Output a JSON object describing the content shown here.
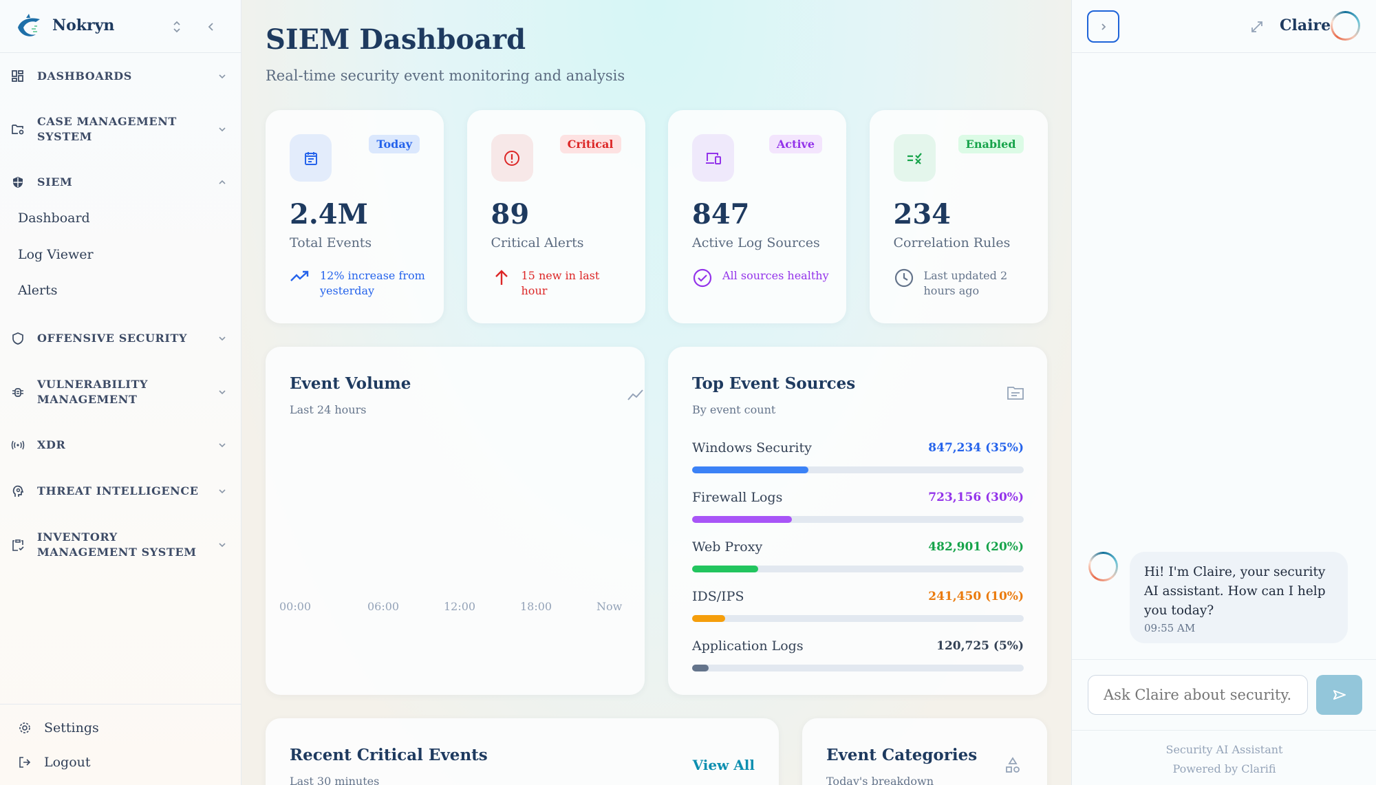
{
  "sidebar": {
    "brand": "Nokryn",
    "nav": [
      {
        "label": "DASHBOARDS",
        "icon": "grid-icon",
        "expanded": false
      },
      {
        "label": "CASE MANAGEMENT SYSTEM",
        "icon": "folder-gear-icon",
        "expanded": false
      },
      {
        "label": "SIEM",
        "icon": "shield-half-icon",
        "expanded": true
      },
      {
        "label": "OFFENSIVE SECURITY",
        "icon": "shield-icon",
        "expanded": false
      },
      {
        "label": "VULNERABILITY MANAGEMENT",
        "icon": "bug-icon",
        "expanded": false
      },
      {
        "label": "XDR",
        "icon": "broadcast-icon",
        "expanded": false
      },
      {
        "label": "THREAT INTELLIGENCE",
        "icon": "head-gear-icon",
        "expanded": false
      },
      {
        "label": "INVENTORY MANAGEMENT SYSTEM",
        "icon": "clipboard-check-icon",
        "expanded": false
      }
    ],
    "siem_items": [
      "Dashboard",
      "Log Viewer",
      "Alerts"
    ],
    "settings": "Settings",
    "logout": "Logout"
  },
  "header": {
    "title": "SIEM Dashboard",
    "subtitle": "Real-time security event monitoring and analysis"
  },
  "stats": [
    {
      "value": "2.4M",
      "label": "Total Events",
      "badge": "Today",
      "footer": "12% increase from yesterday",
      "color": "#2563eb",
      "bg": "#e3ecfb",
      "badge_bg": "#dbe8fd",
      "icon": "calendar-icon",
      "footer_icon": "trend-up-icon"
    },
    {
      "value": "89",
      "label": "Critical Alerts",
      "badge": "Critical",
      "footer": "15 new in last hour",
      "color": "#dc2626",
      "bg": "#f7e8e8",
      "badge_bg": "#fde2e2",
      "icon": "alert-circle-icon",
      "footer_icon": "arrow-up-icon"
    },
    {
      "value": "847",
      "label": "Active Log Sources",
      "badge": "Active",
      "footer": "All sources healthy",
      "color": "#9333ea",
      "bg": "#efe9fb",
      "badge_bg": "#f3e5fd",
      "icon": "devices-icon",
      "footer_icon": "check-circle-icon"
    },
    {
      "value": "234",
      "label": "Correlation Rules",
      "badge": "Enabled",
      "footer": "Last updated 2 hours ago",
      "color": "#16a34a",
      "bg": "#e4f6ec",
      "badge_bg": "#dcfbe6",
      "icon": "rules-icon",
      "footer_icon": "clock-icon",
      "footer_color": "#64748b"
    }
  ],
  "event_volume": {
    "title": "Event Volume",
    "subtitle": "Last 24 hours",
    "x_ticks": [
      "00:00",
      "06:00",
      "12:00",
      "18:00",
      "Now"
    ]
  },
  "top_sources": {
    "title": "Top Event Sources",
    "subtitle": "By event count",
    "items": [
      {
        "name": "Windows Security",
        "value": "847,234 (35%)",
        "percent": 35,
        "color": "#3b82f6",
        "text_color": "#2563eb"
      },
      {
        "name": "Firewall Logs",
        "value": "723,156 (30%)",
        "percent": 30,
        "color": "#a855f7",
        "text_color": "#9333ea"
      },
      {
        "name": "Web Proxy",
        "value": "482,901 (20%)",
        "percent": 20,
        "color": "#22c55e",
        "text_color": "#16a34a"
      },
      {
        "name": "IDS/IPS",
        "value": "241,450 (10%)",
        "percent": 10,
        "color": "#f59e0b",
        "text_color": "#ea7a0c"
      },
      {
        "name": "Application Logs",
        "value": "120,725 (5%)",
        "percent": 5,
        "color": "#64748b",
        "text_color": "#334155"
      }
    ]
  },
  "recent_events": {
    "title": "Recent Critical Events",
    "subtitle": "Last 30 minutes",
    "view_all": "View All"
  },
  "categories": {
    "title": "Event Categories",
    "subtitle": "Today's breakdown"
  },
  "chat": {
    "name": "Claire",
    "message": "Hi! I'm Claire, your security AI assistant. How can I help you today?",
    "time": "09:55 AM",
    "placeholder": "Ask Claire about security..",
    "footer1": "Security AI Assistant",
    "footer2": "Powered by Clarifi"
  }
}
